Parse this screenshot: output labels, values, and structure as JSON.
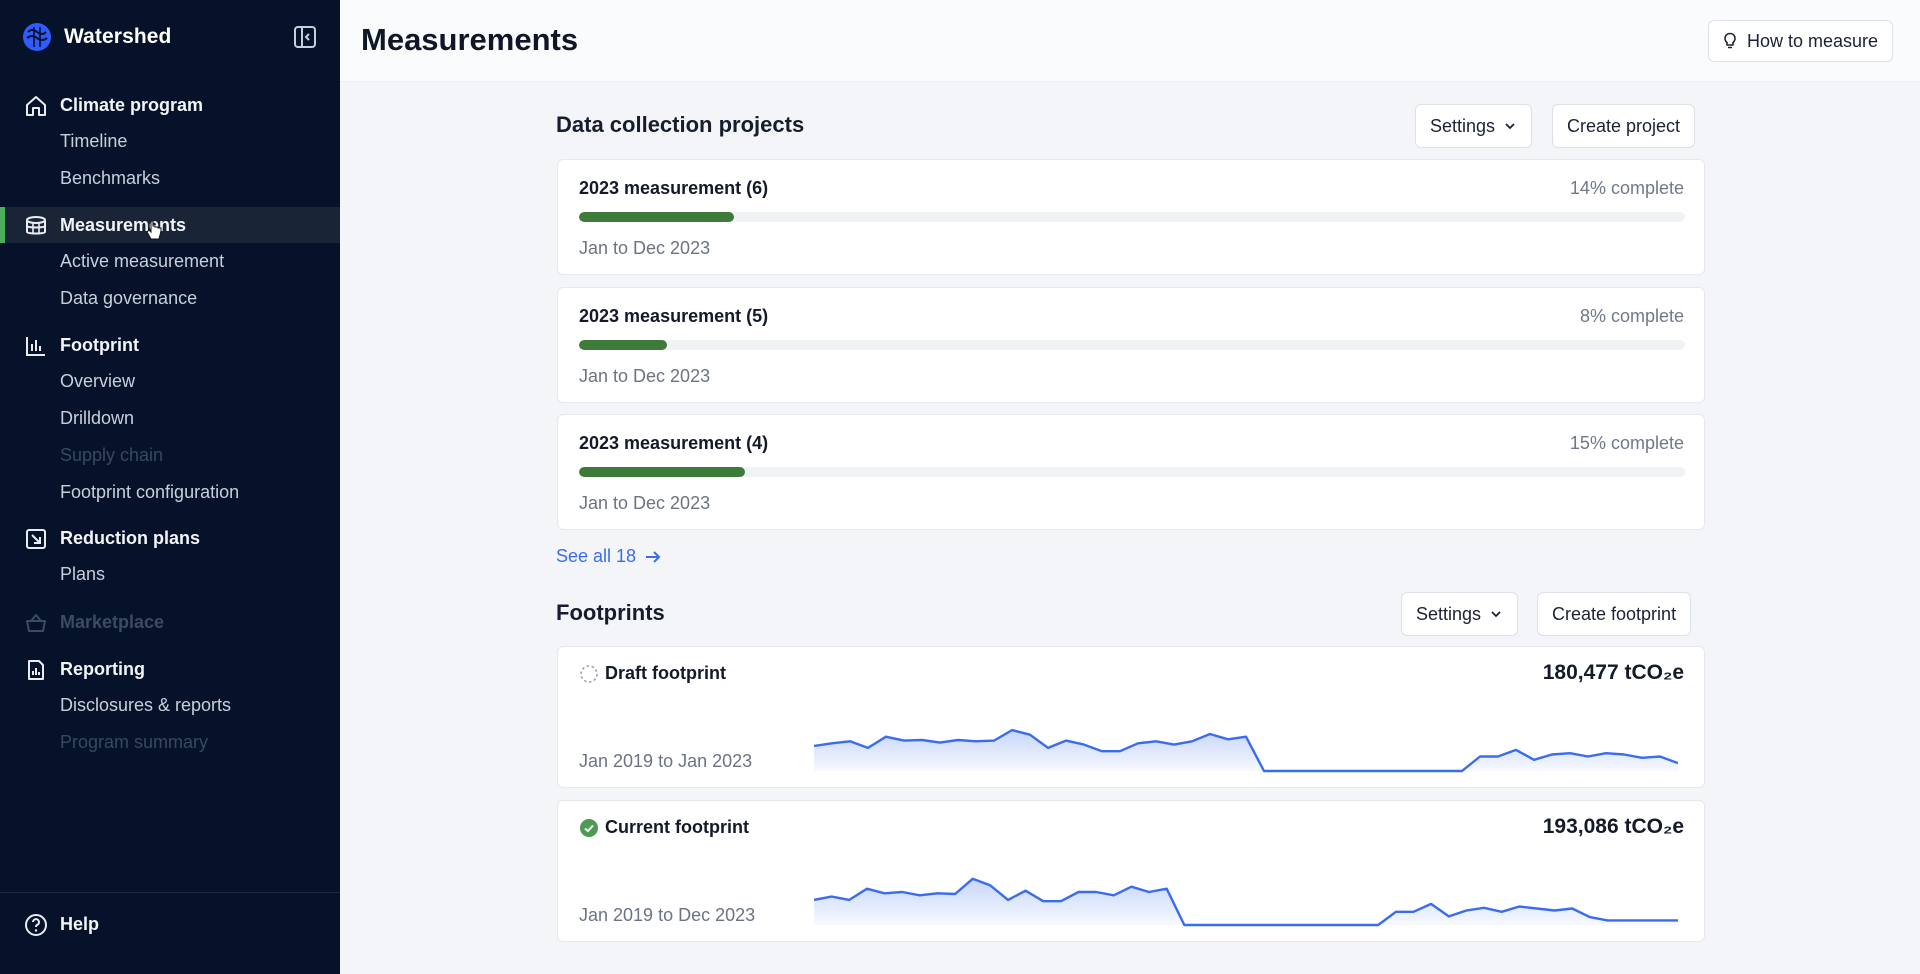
{
  "app": {
    "name": "Watershed",
    "accent_color": "#3a6cf0",
    "progress_color": "#3e7a3a",
    "sidebar_bg": "#061229"
  },
  "sidebar": {
    "sections": [
      {
        "label": "Climate program",
        "icon": "home-icon",
        "items": [
          {
            "label": "Timeline",
            "disabled": false
          },
          {
            "label": "Benchmarks",
            "disabled": false
          }
        ]
      },
      {
        "label": "Measurements",
        "icon": "database-icon",
        "active": true,
        "items": [
          {
            "label": "Active measurement",
            "disabled": false
          },
          {
            "label": "Data governance",
            "disabled": false
          }
        ]
      },
      {
        "label": "Footprint",
        "icon": "bar-chart-icon",
        "items": [
          {
            "label": "Overview",
            "disabled": false
          },
          {
            "label": "Drilldown",
            "disabled": false
          },
          {
            "label": "Supply chain",
            "disabled": true
          },
          {
            "label": "Footprint configuration",
            "disabled": false
          }
        ]
      },
      {
        "label": "Reduction plans",
        "icon": "arrow-down-right-icon",
        "items": [
          {
            "label": "Plans",
            "disabled": false
          }
        ]
      },
      {
        "label": "Marketplace",
        "icon": "basket-icon",
        "disabled": true,
        "items": []
      },
      {
        "label": "Reporting",
        "icon": "report-icon",
        "items": [
          {
            "label": "Disclosures & reports",
            "disabled": false
          },
          {
            "label": "Program summary",
            "disabled": true
          }
        ]
      }
    ],
    "help_label": "Help"
  },
  "header": {
    "title": "Measurements",
    "how_to_label": "How to measure"
  },
  "projects": {
    "title": "Data collection projects",
    "settings_label": "Settings",
    "create_label": "Create project",
    "items": [
      {
        "name": "2023 measurement (6)",
        "percent_text": "14% complete",
        "progress": 0.14,
        "date": "Jan to Dec 2023"
      },
      {
        "name": "2023 measurement (5)",
        "percent_text": "8% complete",
        "progress": 0.08,
        "date": "Jan to Dec 2023"
      },
      {
        "name": "2023 measurement (4)",
        "percent_text": "15% complete",
        "progress": 0.15,
        "date": "Jan to Dec 2023"
      }
    ],
    "see_all_label": "See all 18"
  },
  "footprints": {
    "title": "Footprints",
    "settings_label": "Settings",
    "create_label": "Create footprint",
    "items": [
      {
        "name": "Draft footprint",
        "status": "draft",
        "value": "180,477 tCO₂e",
        "date": "Jan 2019 to Jan 2023",
        "series": [
          0.38,
          0.42,
          0.45,
          0.35,
          0.52,
          0.46,
          0.47,
          0.43,
          0.47,
          0.45,
          0.46,
          0.62,
          0.55,
          0.35,
          0.46,
          0.4,
          0.3,
          0.3,
          0.42,
          0.45,
          0.4,
          0.45,
          0.56,
          0.48,
          0.52,
          0.0,
          0.0,
          0.0,
          0.0,
          0.0,
          0.0,
          0.0,
          0.0,
          0.0,
          0.0,
          0.0,
          0.0,
          0.22,
          0.22,
          0.32,
          0.17,
          0.25,
          0.27,
          0.22,
          0.27,
          0.25,
          0.2,
          0.22,
          0.12
        ]
      },
      {
        "name": "Current footprint",
        "status": "complete",
        "value": "193,086 tCO₂e",
        "date": "Jan 2019 to Dec 2023",
        "series": [
          0.38,
          0.43,
          0.38,
          0.55,
          0.48,
          0.5,
          0.45,
          0.48,
          0.47,
          0.7,
          0.6,
          0.38,
          0.52,
          0.36,
          0.36,
          0.5,
          0.5,
          0.45,
          0.58,
          0.5,
          0.55,
          0.0,
          0.0,
          0.0,
          0.0,
          0.0,
          0.0,
          0.0,
          0.0,
          0.0,
          0.0,
          0.0,
          0.0,
          0.2,
          0.2,
          0.32,
          0.13,
          0.22,
          0.26,
          0.2,
          0.28,
          0.25,
          0.22,
          0.25,
          0.12,
          0.07,
          0.07,
          0.07,
          0.07,
          0.07
        ]
      }
    ]
  }
}
